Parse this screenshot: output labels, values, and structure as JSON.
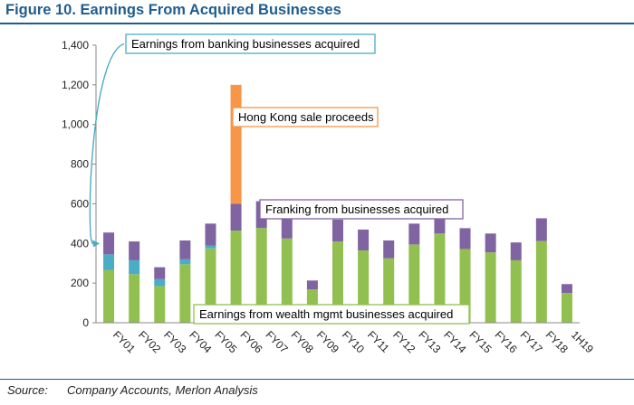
{
  "figure_title": "Figure 10. Earnings From Acquired Businesses",
  "source_label": "Source:",
  "source_text": "Company Accounts, Merlon Analysis",
  "chart_data": {
    "type": "bar",
    "stacked": true,
    "categories": [
      "FY01",
      "FY02",
      "FY03",
      "FY04",
      "FY05",
      "FY06",
      "FY07",
      "FY08",
      "FY09",
      "FY10",
      "FY11",
      "FY12",
      "FY13",
      "FY14",
      "FY15",
      "FY16",
      "FY17",
      "FY18",
      "1H19"
    ],
    "series": [
      {
        "key": "wealth",
        "color": "#92c050",
        "values": [
          265,
          245,
          185,
          295,
          375,
          465,
          478,
          425,
          168,
          410,
          365,
          325,
          395,
          450,
          372,
          355,
          315,
          412,
          150
        ]
      },
      {
        "key": "banking",
        "color": "#4bacc6",
        "values": [
          80,
          70,
          35,
          25,
          15,
          0,
          0,
          0,
          0,
          0,
          0,
          0,
          0,
          0,
          0,
          0,
          0,
          0,
          0
        ]
      },
      {
        "key": "franking",
        "color": "#8064a2",
        "values": [
          110,
          95,
          60,
          95,
          110,
          135,
          135,
          110,
          45,
          110,
          105,
          90,
          105,
          85,
          105,
          95,
          90,
          115,
          45
        ]
      },
      {
        "key": "hongkong",
        "color": "#f79646",
        "values": [
          0,
          0,
          0,
          0,
          0,
          600,
          0,
          0,
          0,
          0,
          0,
          0,
          0,
          0,
          0,
          0,
          0,
          0,
          0
        ]
      }
    ],
    "ylim": [
      0,
      1400
    ],
    "yticks": [
      "0",
      "200",
      "400",
      "600",
      "800",
      "1,000",
      "1,200",
      "1,400"
    ],
    "grid": false,
    "annotations": [
      {
        "key": "banking",
        "text": "Earnings from banking businesses acquired",
        "border": "#4bacc6"
      },
      {
        "key": "hongkong",
        "text": "Hong Kong sale proceeds",
        "border": "#f79646"
      },
      {
        "key": "franking",
        "text": "Franking from businesses acquired",
        "border": "#8064a2"
      },
      {
        "key": "wealth",
        "text": "Earnings from wealth mgmt businesses acquired",
        "border": "#92c050"
      }
    ]
  }
}
